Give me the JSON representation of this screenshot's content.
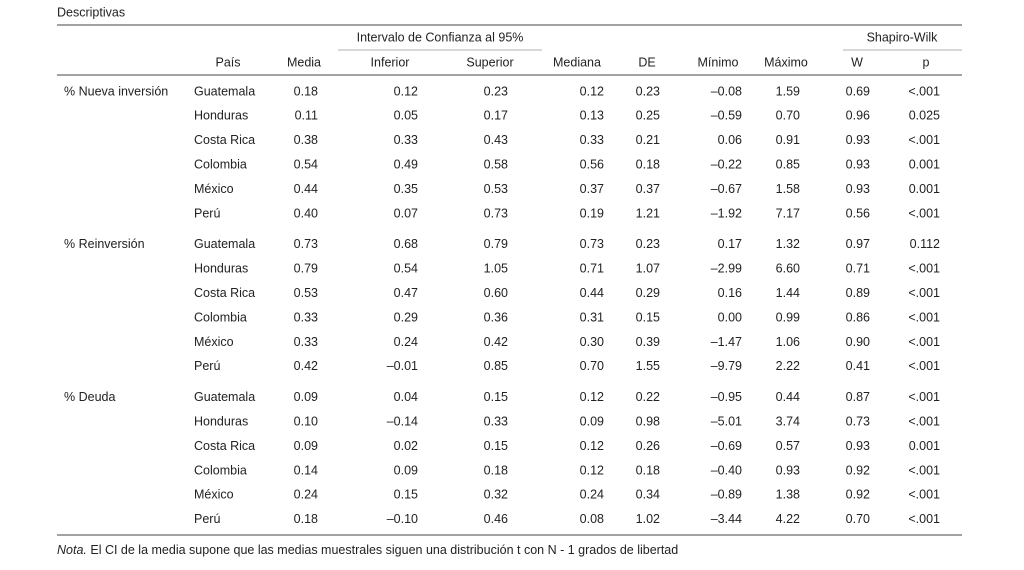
{
  "title": "Descriptivas",
  "table": {
    "spanners": [
      "Intervalo de Confianza al 95%",
      "Shapiro-Wilk"
    ],
    "columns": [
      "País",
      "Media",
      "Inferior",
      "Superior",
      "Mediana",
      "DE",
      "Mínimo",
      "Máximo",
      "W",
      "p"
    ],
    "groups": [
      {
        "label": "% Nueva inversión",
        "rows": [
          [
            "Guatemala",
            "0.18",
            "0.12",
            "0.23",
            "0.12",
            "0.23",
            "–0.08",
            "1.59",
            "0.69",
            "<.001"
          ],
          [
            "Honduras",
            "0.11",
            "0.05",
            "0.17",
            "0.13",
            "0.25",
            "–0.59",
            "0.70",
            "0.96",
            "0.025"
          ],
          [
            "Costa Rica",
            "0.38",
            "0.33",
            "0.43",
            "0.33",
            "0.21",
            "0.06",
            "0.91",
            "0.93",
            "<.001"
          ],
          [
            "Colombia",
            "0.54",
            "0.49",
            "0.58",
            "0.56",
            "0.18",
            "–0.22",
            "0.85",
            "0.93",
            "0.001"
          ],
          [
            "México",
            "0.44",
            "0.35",
            "0.53",
            "0.37",
            "0.37",
            "–0.67",
            "1.58",
            "0.93",
            "0.001"
          ],
          [
            "Perú",
            "0.40",
            "0.07",
            "0.73",
            "0.19",
            "1.21",
            "–1.92",
            "7.17",
            "0.56",
            "<.001"
          ]
        ]
      },
      {
        "label": "% Reinversión",
        "rows": [
          [
            "Guatemala",
            "0.73",
            "0.68",
            "0.79",
            "0.73",
            "0.23",
            "0.17",
            "1.32",
            "0.97",
            "0.112"
          ],
          [
            "Honduras",
            "0.79",
            "0.54",
            "1.05",
            "0.71",
            "1.07",
            "–2.99",
            "6.60",
            "0.71",
            "<.001"
          ],
          [
            "Costa Rica",
            "0.53",
            "0.47",
            "0.60",
            "0.44",
            "0.29",
            "0.16",
            "1.44",
            "0.89",
            "<.001"
          ],
          [
            "Colombia",
            "0.33",
            "0.29",
            "0.36",
            "0.31",
            "0.15",
            "0.00",
            "0.99",
            "0.86",
            "<.001"
          ],
          [
            "México",
            "0.33",
            "0.24",
            "0.42",
            "0.30",
            "0.39",
            "–1.47",
            "1.06",
            "0.90",
            "<.001"
          ],
          [
            "Perú",
            "0.42",
            "–0.01",
            "0.85",
            "0.70",
            "1.55",
            "–9.79",
            "2.22",
            "0.41",
            "<.001"
          ]
        ]
      },
      {
        "label": "% Deuda",
        "rows": [
          [
            "Guatemala",
            "0.09",
            "0.04",
            "0.15",
            "0.12",
            "0.22",
            "–0.95",
            "0.44",
            "0.87",
            "<.001"
          ],
          [
            "Honduras",
            "0.10",
            "–0.14",
            "0.33",
            "0.09",
            "0.98",
            "–5.01",
            "3.74",
            "0.73",
            "<.001"
          ],
          [
            "Costa Rica",
            "0.09",
            "0.02",
            "0.15",
            "0.12",
            "0.26",
            "–0.69",
            "0.57",
            "0.93",
            "0.001"
          ],
          [
            "Colombia",
            "0.14",
            "0.09",
            "0.18",
            "0.12",
            "0.18",
            "–0.40",
            "0.93",
            "0.92",
            "<.001"
          ],
          [
            "México",
            "0.24",
            "0.15",
            "0.32",
            "0.24",
            "0.34",
            "–0.89",
            "1.38",
            "0.92",
            "<.001"
          ],
          [
            "Perú",
            "0.18",
            "–0.10",
            "0.46",
            "0.08",
            "1.02",
            "–3.44",
            "4.22",
            "0.70",
            "<.001"
          ]
        ]
      }
    ]
  },
  "note": {
    "label": "Nota.",
    "text": " El CI de la media supone que las medias muestrales siguen una distribución t con N - 1 grados de libertad"
  }
}
